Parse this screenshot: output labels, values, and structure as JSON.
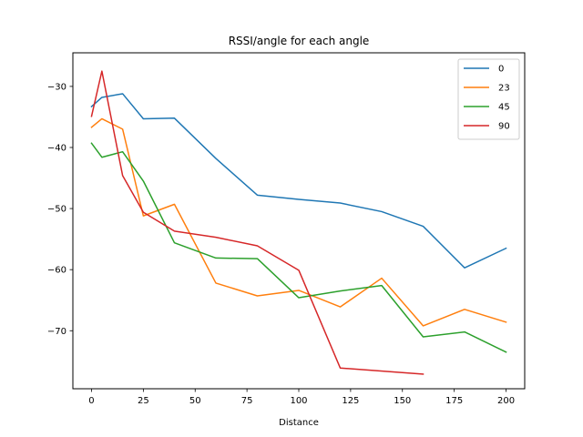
{
  "chart_data": {
    "type": "line",
    "title": "RSSI/angle for each angle",
    "xlabel": "Distance",
    "ylabel": "",
    "xlim": [
      -9,
      209
    ],
    "ylim": [
      -79.5,
      -24.5
    ],
    "xticks": [
      0,
      25,
      50,
      75,
      100,
      125,
      150,
      175,
      200
    ],
    "yticks": [
      -70,
      -60,
      -50,
      -40,
      -30
    ],
    "grid": false,
    "legend_position": "top-right",
    "colors": {
      "0": "#1f77b4",
      "23": "#ff7f0e",
      "45": "#2ca02c",
      "90": "#d62728"
    },
    "series": [
      {
        "name": "0",
        "x": [
          0,
          5,
          15,
          25,
          40,
          60,
          80,
          100,
          120,
          140,
          160,
          180,
          200
        ],
        "y": [
          -33.3,
          -31.8,
          -31.2,
          -35.3,
          -35.2,
          -41.8,
          -47.8,
          -48.5,
          -49.1,
          -50.5,
          -52.9,
          -59.7,
          -56.5
        ]
      },
      {
        "name": "23",
        "x": [
          0,
          5,
          15,
          25,
          40,
          60,
          80,
          100,
          120,
          140,
          160,
          180,
          200
        ],
        "y": [
          -36.7,
          -35.3,
          -37.0,
          -51.2,
          -49.3,
          -62.2,
          -64.3,
          -63.4,
          -66.1,
          -61.4,
          -69.2,
          -66.5,
          -68.6
        ]
      },
      {
        "name": "45",
        "x": [
          0,
          5,
          15,
          25,
          40,
          60,
          80,
          100,
          120,
          140,
          160,
          180,
          200
        ],
        "y": [
          -39.3,
          -41.6,
          -40.7,
          -45.5,
          -55.6,
          -58.1,
          -58.2,
          -64.6,
          -63.5,
          -62.6,
          -71.0,
          -70.2,
          -73.5
        ]
      },
      {
        "name": "90",
        "x": [
          0,
          5,
          15,
          25,
          40,
          60,
          80,
          100,
          120,
          160
        ],
        "y": [
          -34.9,
          -27.5,
          -44.6,
          -50.6,
          -53.7,
          -54.7,
          -56.1,
          -60.1,
          -76.1,
          -77.1
        ]
      }
    ]
  }
}
